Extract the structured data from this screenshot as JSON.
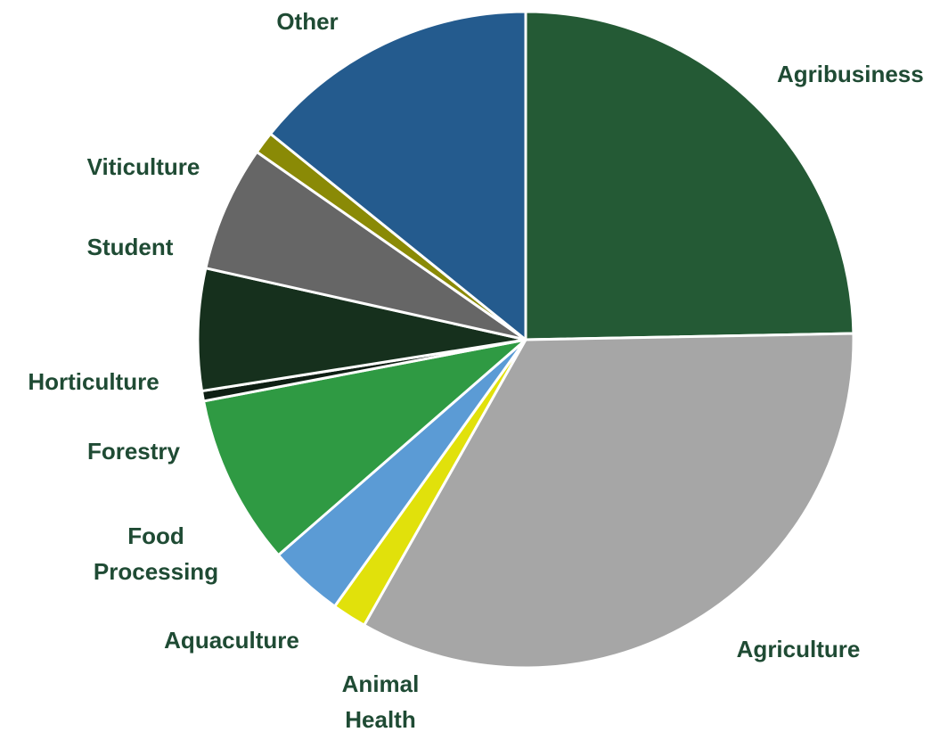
{
  "chart_data": {
    "type": "pie",
    "title": "",
    "legend": "none",
    "colors": {
      "label_text": "#1f4b34"
    },
    "slices": [
      {
        "name": "Agribusiness",
        "label_lines": [
          "Agribusiness"
        ],
        "value": 24.7,
        "color": "#245a35"
      },
      {
        "name": "Agriculture",
        "label_lines": [
          "Agriculture"
        ],
        "value": 33.5,
        "color": "#a6a6a6"
      },
      {
        "name": "Animal Health",
        "label_lines": [
          "Animal",
          "Health"
        ],
        "value": 1.7,
        "color": "#e1e10b"
      },
      {
        "name": "Aquaculture",
        "label_lines": [
          "Aquaculture"
        ],
        "value": 3.7,
        "color": "#5b9bd5"
      },
      {
        "name": "Food Processing",
        "label_lines": [
          "Food",
          "Processing"
        ],
        "value": 8.4,
        "color": "#2f9a43"
      },
      {
        "name": "Forestry",
        "label_lines": [
          "Forestry"
        ],
        "value": 0.5,
        "color": "#0e1f14"
      },
      {
        "name": "Horticulture",
        "label_lines": [
          "Horticulture"
        ],
        "value": 6.0,
        "color": "#16301d"
      },
      {
        "name": "Student",
        "label_lines": [
          "Student"
        ],
        "value": 6.2,
        "color": "#666666"
      },
      {
        "name": "Viticulture",
        "label_lines": [
          "Viticulture"
        ],
        "value": 1.1,
        "color": "#8a8a06"
      },
      {
        "name": "Other",
        "label_lines": [
          "Other"
        ],
        "value": 14.2,
        "color": "#245b8e"
      }
    ]
  }
}
